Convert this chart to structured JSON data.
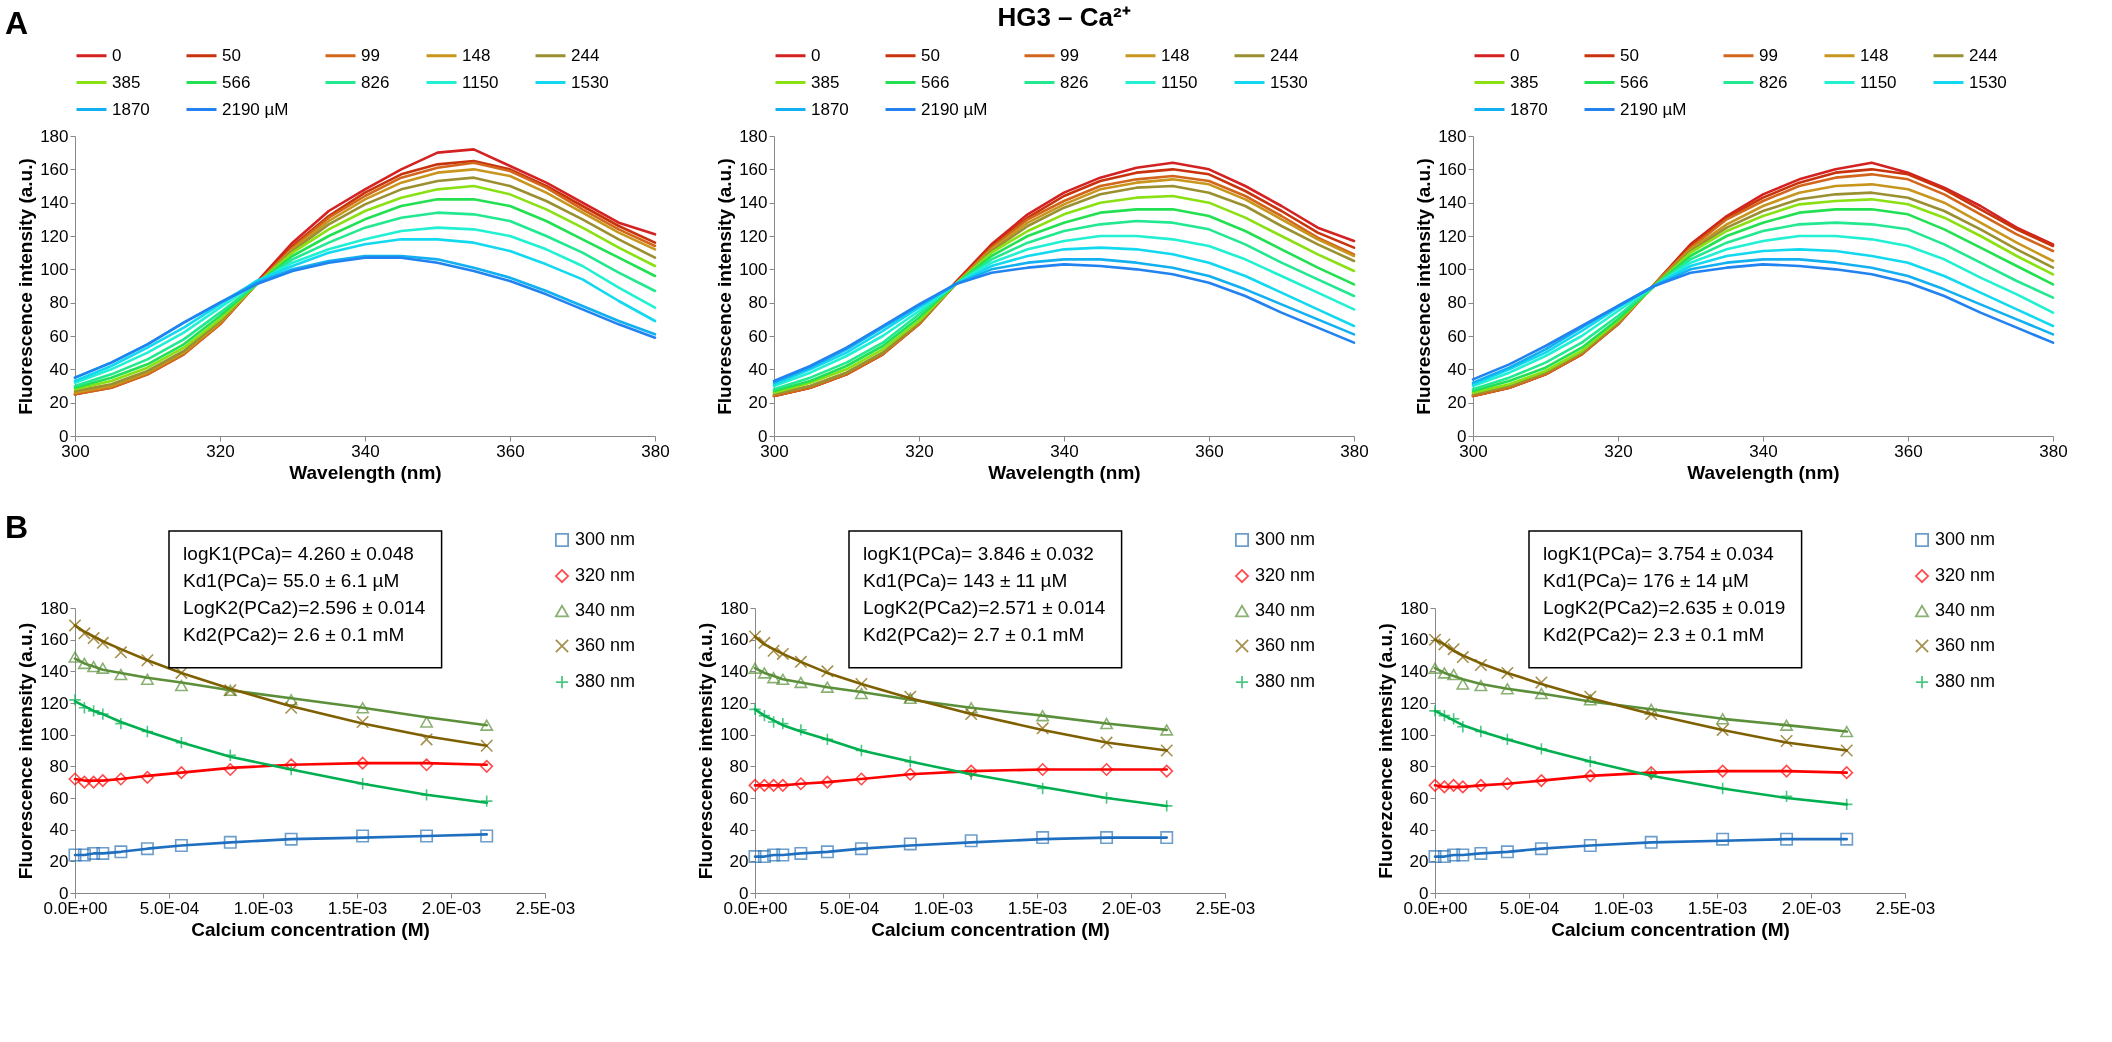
{
  "chart_data": [
    {
      "type": "line",
      "annotations": [
        "A"
      ],
      "xlabel": "Wavelength (nm)",
      "ylabel": "Fluorescence intensity (a.u.)",
      "legend": "top",
      "xlim": [
        300,
        380
      ],
      "xticks": [
        300,
        320,
        340,
        360,
        380
      ],
      "ylim": [
        0,
        180
      ],
      "yticks": [
        0,
        20,
        40,
        60,
        80,
        100,
        120,
        140,
        160,
        180
      ],
      "x": [
        300,
        305,
        310,
        315,
        320,
        325,
        330,
        335,
        340,
        345,
        350,
        355,
        360,
        365,
        370,
        375,
        380
      ],
      "series": [
        {
          "name": "0",
          "color": "#d42222",
          "values": [
            25,
            30,
            38,
            50,
            68,
            92,
            116,
            135,
            148,
            160,
            170,
            172,
            162,
            152,
            140,
            128,
            121
          ]
        },
        {
          "name": "50",
          "color": "#c8320c",
          "values": [
            25,
            29,
            37,
            49,
            67,
            91,
            114,
            132,
            146,
            157,
            163,
            165,
            160,
            150,
            138,
            126,
            116
          ]
        },
        {
          "name": "99",
          "color": "#d2661a",
          "values": [
            25,
            29,
            37,
            49,
            67,
            91,
            113,
            131,
            144,
            155,
            161,
            164,
            159,
            149,
            136,
            124,
            114
          ]
        },
        {
          "name": "148",
          "color": "#c8961e",
          "values": [
            26,
            30,
            38,
            50,
            68,
            91,
            112,
            129,
            142,
            152,
            158,
            160,
            156,
            146,
            134,
            122,
            112
          ]
        },
        {
          "name": "244",
          "color": "#9a9032",
          "values": [
            27,
            31,
            39,
            51,
            69,
            91,
            111,
            127,
            139,
            148,
            153,
            155,
            150,
            141,
            130,
            118,
            107
          ]
        },
        {
          "name": "385",
          "color": "#8ae012",
          "values": [
            28,
            33,
            41,
            53,
            70,
            91,
            110,
            124,
            135,
            143,
            148,
            150,
            145,
            136,
            125,
            113,
            102
          ]
        },
        {
          "name": "566",
          "color": "#22e052",
          "values": [
            29,
            35,
            43,
            55,
            72,
            91,
            108,
            120,
            130,
            138,
            142,
            142,
            138,
            129,
            118,
            107,
            96
          ]
        },
        {
          "name": "826",
          "color": "#22e890",
          "values": [
            30,
            37,
            46,
            58,
            74,
            91,
            106,
            116,
            125,
            131,
            134,
            133,
            129,
            120,
            110,
            98,
            87
          ]
        },
        {
          "name": "1150",
          "color": "#22f0d2",
          "values": [
            32,
            40,
            50,
            62,
            77,
            92,
            104,
            112,
            118,
            123,
            125,
            124,
            120,
            112,
            102,
            89,
            77
          ]
        },
        {
          "name": "1530",
          "color": "#12d8f0",
          "values": [
            33,
            42,
            53,
            65,
            79,
            93,
            102,
            110,
            115,
            118,
            118,
            116,
            111,
            103,
            94,
            81,
            69
          ]
        },
        {
          "name": "1870",
          "color": "#12b0f0",
          "values": [
            35,
            44,
            55,
            68,
            80,
            92,
            100,
            105,
            108,
            108,
            106,
            101,
            95,
            87,
            78,
            69,
            61
          ]
        },
        {
          "name": "2190 µM",
          "color": "#2282f0",
          "values": [
            35,
            44,
            55,
            68,
            80,
            91,
            99,
            104,
            107,
            107,
            104,
            99,
            93,
            85,
            76,
            67,
            59
          ]
        }
      ]
    },
    {
      "type": "line",
      "title": "HG3 – Ca²⁺",
      "xlabel": "Wavelength (nm)",
      "ylabel": "Fluorescence intensity (a.u.)",
      "legend": "top",
      "xlim": [
        300,
        380
      ],
      "xticks": [
        300,
        320,
        340,
        360,
        380
      ],
      "ylim": [
        0,
        180
      ],
      "yticks": [
        0,
        20,
        40,
        60,
        80,
        100,
        120,
        140,
        160,
        180
      ],
      "x": [
        300,
        305,
        310,
        315,
        320,
        325,
        330,
        335,
        340,
        345,
        350,
        355,
        360,
        365,
        370,
        375,
        380
      ],
      "series": [
        {
          "name": "0",
          "color": "#d42222",
          "values": [
            24,
            29,
            37,
            49,
            68,
            92,
            115,
            133,
            146,
            155,
            161,
            164,
            160,
            150,
            138,
            125,
            117
          ]
        },
        {
          "name": "50",
          "color": "#c8320c",
          "values": [
            24,
            29,
            37,
            49,
            67,
            91,
            114,
            131,
            144,
            153,
            158,
            160,
            157,
            147,
            135,
            122,
            113
          ]
        },
        {
          "name": "99",
          "color": "#d2661a",
          "values": [
            24,
            29,
            37,
            49,
            67,
            91,
            113,
            130,
            141,
            150,
            154,
            156,
            153,
            144,
            132,
            119,
            109
          ]
        },
        {
          "name": "148",
          "color": "#c8961e",
          "values": [
            25,
            30,
            38,
            50,
            68,
            91,
            112,
            128,
            139,
            148,
            152,
            154,
            151,
            142,
            130,
            118,
            108
          ]
        },
        {
          "name": "244",
          "color": "#9a9032",
          "values": [
            25,
            30,
            38,
            50,
            68,
            91,
            111,
            126,
            137,
            145,
            149,
            150,
            146,
            138,
            126,
            115,
            105
          ]
        },
        {
          "name": "385",
          "color": "#8ae012",
          "values": [
            26,
            32,
            40,
            52,
            69,
            91,
            110,
            123,
            133,
            140,
            143,
            144,
            140,
            131,
            120,
            109,
            99
          ]
        },
        {
          "name": "566",
          "color": "#22e052",
          "values": [
            27,
            33,
            42,
            54,
            71,
            91,
            108,
            120,
            128,
            134,
            136,
            136,
            132,
            123,
            112,
            101,
            91
          ]
        },
        {
          "name": "826",
          "color": "#22e890",
          "values": [
            28,
            35,
            44,
            56,
            73,
            91,
            106,
            116,
            123,
            127,
            129,
            128,
            124,
            115,
            104,
            94,
            84
          ]
        },
        {
          "name": "1150",
          "color": "#22f0d2",
          "values": [
            30,
            38,
            48,
            60,
            75,
            91,
            104,
            112,
            117,
            120,
            120,
            118,
            114,
            106,
            96,
            86,
            76
          ]
        },
        {
          "name": "1530",
          "color": "#12d8f0",
          "values": [
            31,
            40,
            50,
            63,
            77,
            91,
            102,
            108,
            112,
            113,
            112,
            109,
            104,
            96,
            86,
            76,
            66
          ]
        },
        {
          "name": "1870",
          "color": "#12b0f0",
          "values": [
            32,
            41,
            52,
            65,
            78,
            91,
            100,
            104,
            106,
            106,
            104,
            101,
            96,
            88,
            79,
            70,
            61
          ]
        },
        {
          "name": "2190 µM",
          "color": "#2282f0",
          "values": [
            33,
            42,
            53,
            66,
            79,
            91,
            98,
            101,
            103,
            102,
            100,
            97,
            92,
            84,
            74,
            65,
            56
          ]
        }
      ]
    },
    {
      "type": "line",
      "xlabel": "Wavelength (nm)",
      "ylabel": "Fluorescence intensity (a.u.)",
      "legend": "top",
      "xlim": [
        300,
        380
      ],
      "xticks": [
        300,
        320,
        340,
        360,
        380
      ],
      "ylim": [
        0,
        180
      ],
      "yticks": [
        0,
        20,
        40,
        60,
        80,
        100,
        120,
        140,
        160,
        180
      ],
      "x": [
        300,
        305,
        310,
        315,
        320,
        325,
        330,
        335,
        340,
        345,
        350,
        355,
        360,
        365,
        370,
        375,
        380
      ],
      "series": [
        {
          "name": "0",
          "color": "#d42222",
          "values": [
            24,
            29,
            37,
            49,
            68,
            91,
            115,
            132,
            145,
            154,
            160,
            164,
            158,
            149,
            138,
            125,
            115
          ]
        },
        {
          "name": "50",
          "color": "#c8320c",
          "values": [
            24,
            29,
            37,
            49,
            67,
            91,
            114,
            131,
            143,
            152,
            158,
            160,
            157,
            148,
            136,
            124,
            114
          ]
        },
        {
          "name": "99",
          "color": "#d2661a",
          "values": [
            24,
            29,
            37,
            49,
            67,
            91,
            113,
            130,
            141,
            150,
            155,
            157,
            154,
            145,
            133,
            121,
            111
          ]
        },
        {
          "name": "148",
          "color": "#c8961e",
          "values": [
            25,
            30,
            38,
            50,
            68,
            91,
            112,
            127,
            138,
            146,
            150,
            151,
            148,
            140,
            128,
            116,
            105
          ]
        },
        {
          "name": "244",
          "color": "#9a9032",
          "values": [
            25,
            30,
            38,
            50,
            68,
            91,
            111,
            125,
            135,
            142,
            145,
            146,
            143,
            135,
            124,
            112,
            101
          ]
        },
        {
          "name": "385",
          "color": "#8ae012",
          "values": [
            26,
            31,
            39,
            51,
            69,
            90,
            110,
            123,
            132,
            139,
            141,
            142,
            139,
            131,
            120,
            108,
            97
          ]
        },
        {
          "name": "566",
          "color": "#22e052",
          "values": [
            27,
            33,
            41,
            53,
            70,
            90,
            108,
            120,
            128,
            134,
            136,
            136,
            133,
            124,
            113,
            102,
            91
          ]
        },
        {
          "name": "826",
          "color": "#22e890",
          "values": [
            28,
            35,
            44,
            56,
            72,
            90,
            106,
            116,
            123,
            127,
            128,
            127,
            124,
            115,
            104,
            93,
            83
          ]
        },
        {
          "name": "1150",
          "color": "#22f0d2",
          "values": [
            30,
            38,
            48,
            60,
            75,
            90,
            104,
            112,
            117,
            120,
            120,
            118,
            114,
            106,
            95,
            85,
            74
          ]
        },
        {
          "name": "1530",
          "color": "#12d8f0",
          "values": [
            31,
            40,
            50,
            63,
            77,
            90,
            102,
            108,
            111,
            112,
            111,
            108,
            104,
            96,
            86,
            76,
            66
          ]
        },
        {
          "name": "1870",
          "color": "#12b0f0",
          "values": [
            32,
            41,
            52,
            65,
            78,
            90,
            100,
            104,
            106,
            106,
            104,
            101,
            96,
            88,
            79,
            70,
            61
          ]
        },
        {
          "name": "2190 µM",
          "color": "#2282f0",
          "values": [
            34,
            43,
            54,
            66,
            78,
            90,
            98,
            101,
            103,
            102,
            100,
            97,
            92,
            84,
            74,
            65,
            56
          ]
        }
      ]
    },
    {
      "type": "scatter",
      "annotations": [
        "B",
        "logK1(PCa)= 4.260 ± 0.048\nKd1(PCa)= 55.0 ± 6.1  µM\nLogK2(PCa2)=2.596 ± 0.014\nKd2(PCa2)= 2.6 ± 0.1 mM"
      ],
      "xlabel": "Calcium concentration (M)",
      "ylabel": "Fluorescence intensity (a.u.)",
      "legend": "right",
      "xlim": [
        0,
        0.0025
      ],
      "xticks": [
        {
          "value": 0,
          "label": "0.0E+00"
        },
        {
          "value": 0.0005,
          "label": "5.0E-04"
        },
        {
          "value": 0.001,
          "label": "1.0E-03"
        },
        {
          "value": 0.0015,
          "label": "1.5E-03"
        },
        {
          "value": 0.002,
          "label": "2.0E-03"
        },
        {
          "value": 0.0025,
          "label": "2.5E-03"
        }
      ],
      "ylim": [
        0,
        180
      ],
      "yticks": [
        0,
        20,
        40,
        60,
        80,
        100,
        120,
        140,
        160,
        180
      ],
      "x": [
        0,
        5e-05,
        9.9e-05,
        0.000148,
        0.000244,
        0.000385,
        0.000566,
        0.000826,
        0.00115,
        0.00153,
        0.00187,
        0.00219
      ],
      "series": [
        {
          "name": "300 nm",
          "color": "#2e75b6",
          "marker": "square",
          "values": [
            24,
            24,
            25,
            25,
            26,
            28,
            30,
            32,
            34,
            36,
            36,
            36
          ]
        },
        {
          "name": "320 nm",
          "color": "#ff0000",
          "marker": "diamond",
          "values": [
            72,
            70,
            70,
            71,
            72,
            73,
            76,
            78,
            81,
            82,
            81,
            80
          ]
        },
        {
          "name": "340 nm",
          "color": "#5b8f3a",
          "marker": "triangle",
          "values": [
            149,
            145,
            143,
            142,
            138,
            135,
            131,
            128,
            122,
            117,
            108,
            106
          ]
        },
        {
          "name": "360 nm",
          "color": "#7f6000",
          "marker": "x",
          "values": [
            169,
            164,
            161,
            158,
            152,
            147,
            139,
            128,
            117,
            108,
            97,
            93
          ]
        },
        {
          "name": "380 nm",
          "color": "#00b050",
          "marker": "cross",
          "values": [
            122,
            117,
            115,
            113,
            107,
            102,
            95,
            87,
            78,
            69,
            62,
            58
          ]
        },
        {
          "type": "line",
          "color": "#1f6fc0",
          "values": [
            24,
            24,
            25,
            25,
            26,
            28,
            30,
            32,
            34,
            35,
            36,
            37
          ]
        },
        {
          "type": "line",
          "color": "#ff0000",
          "values": [
            72,
            71,
            71,
            71,
            72,
            74,
            76,
            79,
            81,
            82,
            82,
            81
          ]
        },
        {
          "type": "line",
          "color": "#5b8f3a",
          "values": [
            148,
            145,
            143,
            141,
            139,
            136,
            133,
            128,
            123,
            117,
            111,
            106
          ]
        },
        {
          "type": "line",
          "color": "#7f6000",
          "values": [
            169,
            165,
            162,
            159,
            154,
            147,
            139,
            129,
            118,
            107,
            99,
            93
          ]
        },
        {
          "type": "line",
          "color": "#00b050",
          "values": [
            121,
            118,
            115,
            113,
            108,
            102,
            95,
            86,
            78,
            69,
            62,
            57
          ]
        }
      ]
    },
    {
      "type": "scatter",
      "annotations": [
        "logK1(PCa)= 3.846 ± 0.032\nKd1(PCa)= 143 ± 11  µM\nLogK2(PCa2)=2.571 ± 0.014\nKd2(PCa2)= 2.7 ± 0.1 mM"
      ],
      "xlabel": "Calcium concentration (M)",
      "ylabel": "Fluorescence intensity (a.u.)",
      "legend": "right",
      "xlim": [
        0,
        0.0025
      ],
      "xticks": [
        {
          "value": 0,
          "label": "0.0E+00"
        },
        {
          "value": 0.0005,
          "label": "5.0E-04"
        },
        {
          "value": 0.001,
          "label": "1.0E-03"
        },
        {
          "value": 0.0015,
          "label": "1.5E-03"
        },
        {
          "value": 0.002,
          "label": "2.0E-03"
        },
        {
          "value": 0.0025,
          "label": "2.5E-03"
        }
      ],
      "ylim": [
        0,
        180
      ],
      "yticks": [
        0,
        20,
        40,
        60,
        80,
        100,
        120,
        140,
        160,
        180
      ],
      "x": [
        0,
        5e-05,
        9.9e-05,
        0.000148,
        0.000244,
        0.000385,
        0.000566,
        0.000826,
        0.00115,
        0.00153,
        0.00187,
        0.00219
      ],
      "series": [
        {
          "name": "300 nm",
          "color": "#2e75b6",
          "marker": "square",
          "values": [
            23,
            23,
            24,
            24,
            25,
            26,
            28,
            31,
            33,
            35,
            35,
            35
          ]
        },
        {
          "name": "320 nm",
          "color": "#ff0000",
          "marker": "diamond",
          "values": [
            68,
            68,
            68,
            68,
            69,
            70,
            72,
            75,
            77,
            78,
            78,
            77
          ]
        },
        {
          "name": "340 nm",
          "color": "#5b8f3a",
          "marker": "triangle",
          "values": [
            142,
            139,
            136,
            135,
            133,
            130,
            126,
            123,
            117,
            112,
            107,
            103
          ]
        },
        {
          "name": "360 nm",
          "color": "#7f6000",
          "marker": "x",
          "values": [
            162,
            158,
            153,
            151,
            146,
            140,
            132,
            124,
            113,
            104,
            95,
            90
          ]
        },
        {
          "name": "380 nm",
          "color": "#00b050",
          "marker": "cross",
          "values": [
            116,
            112,
            108,
            107,
            103,
            97,
            90,
            83,
            75,
            66,
            60,
            55
          ]
        },
        {
          "type": "line",
          "color": "#1f6fc0",
          "values": [
            23,
            23,
            24,
            24,
            25,
            26,
            28,
            30,
            32,
            34,
            35,
            35
          ]
        },
        {
          "type": "line",
          "color": "#ff0000",
          "values": [
            68,
            68,
            68,
            68,
            69,
            70,
            72,
            75,
            77,
            78,
            78,
            78
          ]
        },
        {
          "type": "line",
          "color": "#5b8f3a",
          "values": [
            142,
            139,
            137,
            135,
            133,
            130,
            127,
            122,
            117,
            112,
            107,
            103
          ]
        },
        {
          "type": "line",
          "color": "#7f6000",
          "values": [
            162,
            157,
            154,
            151,
            146,
            139,
            132,
            123,
            113,
            103,
            95,
            90
          ]
        },
        {
          "type": "line",
          "color": "#00b050",
          "values": [
            116,
            112,
            109,
            106,
            102,
            97,
            90,
            83,
            75,
            67,
            60,
            55
          ]
        }
      ]
    },
    {
      "type": "scatter",
      "annotations": [
        "logK1(PCa)= 3.754 ± 0.034\nKd1(PCa)= 176 ± 14  µM\nLogK2(PCa2)=2.635 ± 0.019\nKd2(PCa2)= 2.3 ± 0.1 mM"
      ],
      "xlabel": "Calcium concentration (M)",
      "ylabel": "Fluorezcence intensity (a.u.)",
      "legend": "right",
      "xlim": [
        0,
        0.0025
      ],
      "xticks": [
        {
          "value": 0,
          "label": "0.0E+00"
        },
        {
          "value": 0.0005,
          "label": "5.0E-04"
        },
        {
          "value": 0.001,
          "label": "1.0E-03"
        },
        {
          "value": 0.0015,
          "label": "1.5E-03"
        },
        {
          "value": 0.002,
          "label": "2.0E-03"
        },
        {
          "value": 0.0025,
          "label": "2.5E-03"
        }
      ],
      "ylim": [
        0,
        180
      ],
      "yticks": [
        0,
        20,
        40,
        60,
        80,
        100,
        120,
        140,
        160,
        180
      ],
      "x": [
        0,
        5e-05,
        9.9e-05,
        0.000148,
        0.000244,
        0.000385,
        0.000566,
        0.000826,
        0.00115,
        0.00153,
        0.00187,
        0.00219
      ],
      "series": [
        {
          "name": "300 nm",
          "color": "#2e75b6",
          "marker": "square",
          "values": [
            23,
            23,
            24,
            24,
            25,
            26,
            28,
            30,
            32,
            34,
            34,
            34
          ]
        },
        {
          "name": "320 nm",
          "color": "#ff0000",
          "marker": "diamond",
          "values": [
            68,
            67,
            68,
            67,
            68,
            69,
            71,
            74,
            76,
            77,
            77,
            76
          ]
        },
        {
          "name": "340 nm",
          "color": "#5b8f3a",
          "marker": "triangle",
          "values": [
            142,
            139,
            138,
            132,
            131,
            129,
            126,
            122,
            116,
            110,
            106,
            102
          ]
        },
        {
          "name": "360 nm",
          "color": "#7f6000",
          "marker": "x",
          "values": [
            160,
            157,
            154,
            149,
            144,
            139,
            133,
            124,
            113,
            103,
            96,
            90
          ]
        },
        {
          "name": "380 nm",
          "color": "#00b050",
          "marker": "cross",
          "values": [
            115,
            112,
            110,
            105,
            102,
            97,
            91,
            83,
            75,
            66,
            61,
            56
          ]
        },
        {
          "type": "line",
          "color": "#1f6fc0",
          "values": [
            23,
            23,
            24,
            24,
            25,
            26,
            28,
            30,
            32,
            33,
            34,
            34
          ]
        },
        {
          "type": "line",
          "color": "#ff0000",
          "values": [
            68,
            67,
            67,
            67,
            68,
            69,
            71,
            74,
            76,
            77,
            77,
            76
          ]
        },
        {
          "type": "line",
          "color": "#5b8f3a",
          "values": [
            142,
            139,
            137,
            135,
            132,
            129,
            126,
            121,
            116,
            110,
            106,
            102
          ]
        },
        {
          "type": "line",
          "color": "#7f6000",
          "values": [
            160,
            157,
            153,
            150,
            145,
            139,
            132,
            123,
            113,
            103,
            95,
            90
          ]
        },
        {
          "type": "line",
          "color": "#00b050",
          "values": [
            115,
            112,
            109,
            106,
            102,
            97,
            91,
            83,
            74,
            66,
            60,
            56
          ]
        }
      ]
    }
  ]
}
